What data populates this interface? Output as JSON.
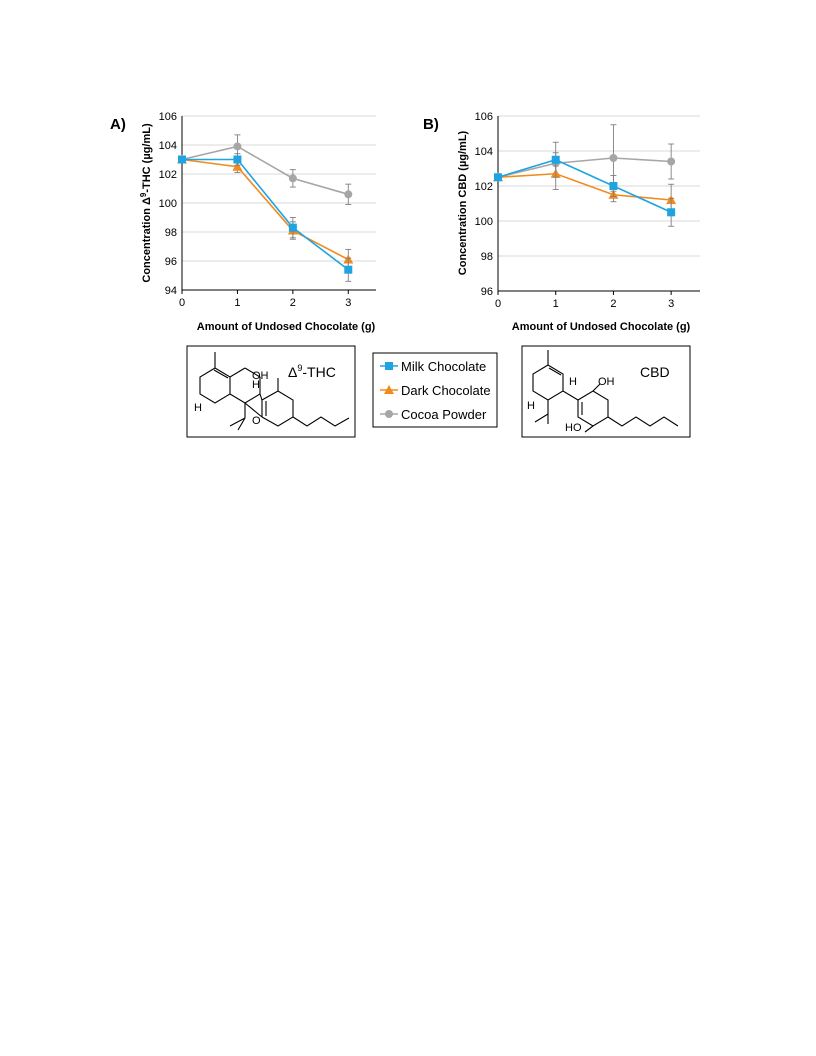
{
  "figure": {
    "panels": [
      "A)",
      "B)"
    ],
    "legend": [
      "Milk Chocolate",
      "Dark Chocolate",
      "Cocoa Powder"
    ],
    "structures": {
      "thc": {
        "label_base": "Δ",
        "label_sup": "9",
        "label_suffix": "-THC",
        "atoms": [
          "OH",
          "H",
          "H",
          "O"
        ]
      },
      "cbd": {
        "label": "CBD",
        "atoms": [
          "OH",
          "H",
          "H",
          "HO"
        ]
      }
    }
  },
  "colors": {
    "milk": "#1FA4E0",
    "dark": "#F28A1E",
    "cocoa": "#A6A6A6",
    "grid": "#D9D9D9"
  },
  "chart_data": [
    {
      "type": "line",
      "panel": "A)",
      "title": "",
      "xlabel": "Amount of Undosed Chocolate (g)",
      "ylabel_prefix": "Concentration Δ",
      "ylabel_sup": "9",
      "ylabel_suffix": "-THC (µg/mL)",
      "x": [
        0,
        1,
        2,
        3
      ],
      "xlim": [
        0,
        3.5
      ],
      "ylim": [
        94,
        106
      ],
      "yticks": [
        94,
        96,
        98,
        100,
        102,
        104,
        106
      ],
      "grid": true,
      "series": [
        {
          "name": "Milk Chocolate",
          "marker": "square",
          "values": [
            103.0,
            103.0,
            98.3,
            95.4
          ],
          "errors": [
            0.2,
            0.4,
            0.7,
            0.8
          ]
        },
        {
          "name": "Dark Chocolate",
          "marker": "triangle",
          "values": [
            103.0,
            102.5,
            98.1,
            96.1
          ],
          "errors": [
            0.2,
            0.4,
            0.6,
            0.7
          ]
        },
        {
          "name": "Cocoa Powder",
          "marker": "circle",
          "values": [
            103.0,
            103.9,
            101.7,
            100.6
          ],
          "errors": [
            0.2,
            0.8,
            0.6,
            0.7
          ]
        }
      ]
    },
    {
      "type": "line",
      "panel": "B)",
      "title": "",
      "xlabel": "Amount of Undosed Chocolate (g)",
      "ylabel": "Concentration CBD (µg/mL)",
      "x": [
        0,
        1,
        2,
        3
      ],
      "xlim": [
        0,
        3.5
      ],
      "ylim": [
        96,
        106
      ],
      "yticks": [
        96,
        98,
        100,
        102,
        104,
        106
      ],
      "grid": true,
      "series": [
        {
          "name": "Milk Chocolate",
          "marker": "square",
          "values": [
            102.5,
            103.5,
            102.0,
            100.5
          ],
          "errors": [
            0.1,
            1.0,
            0.6,
            0.8
          ]
        },
        {
          "name": "Dark Chocolate",
          "marker": "triangle",
          "values": [
            102.5,
            102.7,
            101.5,
            101.2
          ],
          "errors": [
            0.1,
            0.9,
            0.4,
            0.9
          ]
        },
        {
          "name": "Cocoa Powder",
          "marker": "circle",
          "values": [
            102.5,
            103.3,
            103.6,
            103.4
          ],
          "errors": [
            0.1,
            0.6,
            1.9,
            1.0
          ]
        }
      ]
    }
  ]
}
